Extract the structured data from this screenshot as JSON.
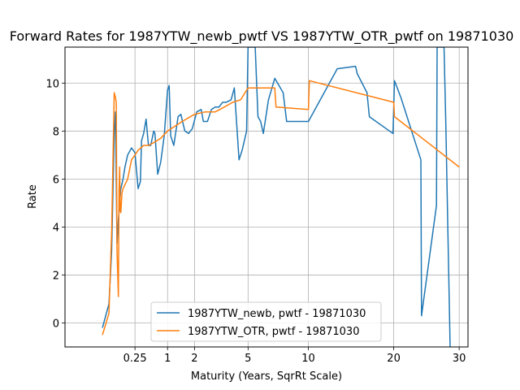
{
  "chart_data": {
    "type": "line",
    "title": "Forward Rates for 1987YTW_newb_pwtf VS 1987YTW_OTR_pwtf on 19871030",
    "xlabel": "Maturity (Years, SqrRt Scale)",
    "ylabel": "Rate",
    "x_scale": "sqrt",
    "xlim": [
      -0.33,
      31.5
    ],
    "ylim": [
      -1.0,
      11.5
    ],
    "x_ticks": [
      {
        "value": 0.25,
        "label": "0.25"
      },
      {
        "value": 1,
        "label": "1"
      },
      {
        "value": 2,
        "label": "2"
      },
      {
        "value": 5,
        "label": "5"
      },
      {
        "value": 10,
        "label": "10"
      },
      {
        "value": 20,
        "label": "20"
      },
      {
        "value": 30,
        "label": "30"
      }
    ],
    "y_ticks": [
      {
        "value": 0,
        "label": "0"
      },
      {
        "value": 2,
        "label": "2"
      },
      {
        "value": 4,
        "label": "4"
      },
      {
        "value": 6,
        "label": "6"
      },
      {
        "value": 8,
        "label": "8"
      },
      {
        "value": 10,
        "label": "10"
      }
    ],
    "grid": true,
    "legend_position": "lower center",
    "series": [
      {
        "name": "1987YTW_newb, pwtf - 19871030",
        "color": "#1f77b4",
        "x": [
          0.0,
          0.01,
          0.02,
          0.033,
          0.04,
          0.05,
          0.06,
          0.072,
          0.08,
          0.09,
          0.1,
          0.12,
          0.15,
          0.2,
          0.25,
          0.3,
          0.34,
          0.36,
          0.4,
          0.45,
          0.5,
          0.55,
          0.62,
          0.65,
          0.72,
          0.8,
          0.9,
          1.0,
          1.05,
          1.1,
          1.2,
          1.35,
          1.45,
          1.6,
          1.75,
          1.9,
          2.1,
          2.3,
          2.4,
          2.6,
          2.8,
          3.0,
          3.2,
          3.4,
          3.6,
          3.9,
          4.1,
          4.4,
          4.6,
          4.9,
          5.0,
          5.1,
          5.2,
          5.5,
          5.7,
          5.9,
          6.1,
          6.5,
          7.0,
          7.7,
          8.0,
          10.0,
          13.0,
          15.1,
          15.3,
          16.5,
          16.8,
          19.9,
          20.1,
          21.0,
          23.9,
          24.0,
          26.3,
          26.4,
          27.5,
          27.8,
          28.5
        ],
        "y": [
          -0.2,
          0.8,
          3.0,
          7.9,
          8.8,
          3.3,
          4.3,
          5.1,
          5.6,
          5.8,
          6.0,
          6.5,
          7.0,
          7.3,
          7.1,
          5.6,
          5.9,
          7.6,
          7.9,
          8.5,
          7.4,
          7.4,
          8.0,
          7.9,
          6.2,
          6.7,
          7.8,
          9.7,
          9.9,
          7.8,
          7.4,
          8.6,
          8.7,
          8.0,
          7.9,
          8.1,
          8.8,
          8.9,
          8.4,
          8.4,
          8.9,
          9.0,
          9.0,
          9.2,
          9.2,
          9.3,
          9.8,
          6.8,
          7.2,
          8.0,
          11.5,
          11.5,
          11.5,
          11.5,
          8.6,
          8.4,
          7.9,
          9.3,
          10.2,
          9.6,
          8.4,
          8.4,
          10.6,
          10.7,
          10.4,
          9.6,
          8.6,
          7.9,
          10.1,
          9.4,
          6.8,
          0.3,
          4.9,
          11.5,
          11.5,
          8.3,
          -1.0
        ]
      },
      {
        "name": "1987YTW_OTR, pwtf - 19871030",
        "color": "#ff7f0e",
        "x": [
          0.0,
          0.01,
          0.02,
          0.033,
          0.04,
          0.045,
          0.05,
          0.06,
          0.065,
          0.07,
          0.075,
          0.08,
          0.09,
          0.1,
          0.15,
          0.2,
          0.25,
          0.3,
          0.4,
          0.5,
          0.6,
          0.8,
          1.0,
          1.5,
          2.0,
          2.5,
          3.0,
          3.5,
          4.0,
          4.5,
          5.0,
          7.0,
          7.1,
          10.0,
          10.1,
          20.0,
          20.1,
          30.0
        ],
        "y": [
          -0.5,
          0.4,
          3.8,
          9.6,
          9.4,
          9.2,
          3.0,
          1.1,
          5.5,
          6.5,
          4.7,
          4.6,
          5.4,
          5.6,
          6.0,
          6.8,
          7.0,
          7.2,
          7.4,
          7.4,
          7.5,
          7.7,
          8.0,
          8.4,
          8.7,
          8.8,
          8.8,
          9.0,
          9.2,
          9.3,
          9.8,
          9.8,
          9.0,
          8.9,
          10.1,
          9.2,
          8.6,
          6.5
        ]
      }
    ]
  }
}
